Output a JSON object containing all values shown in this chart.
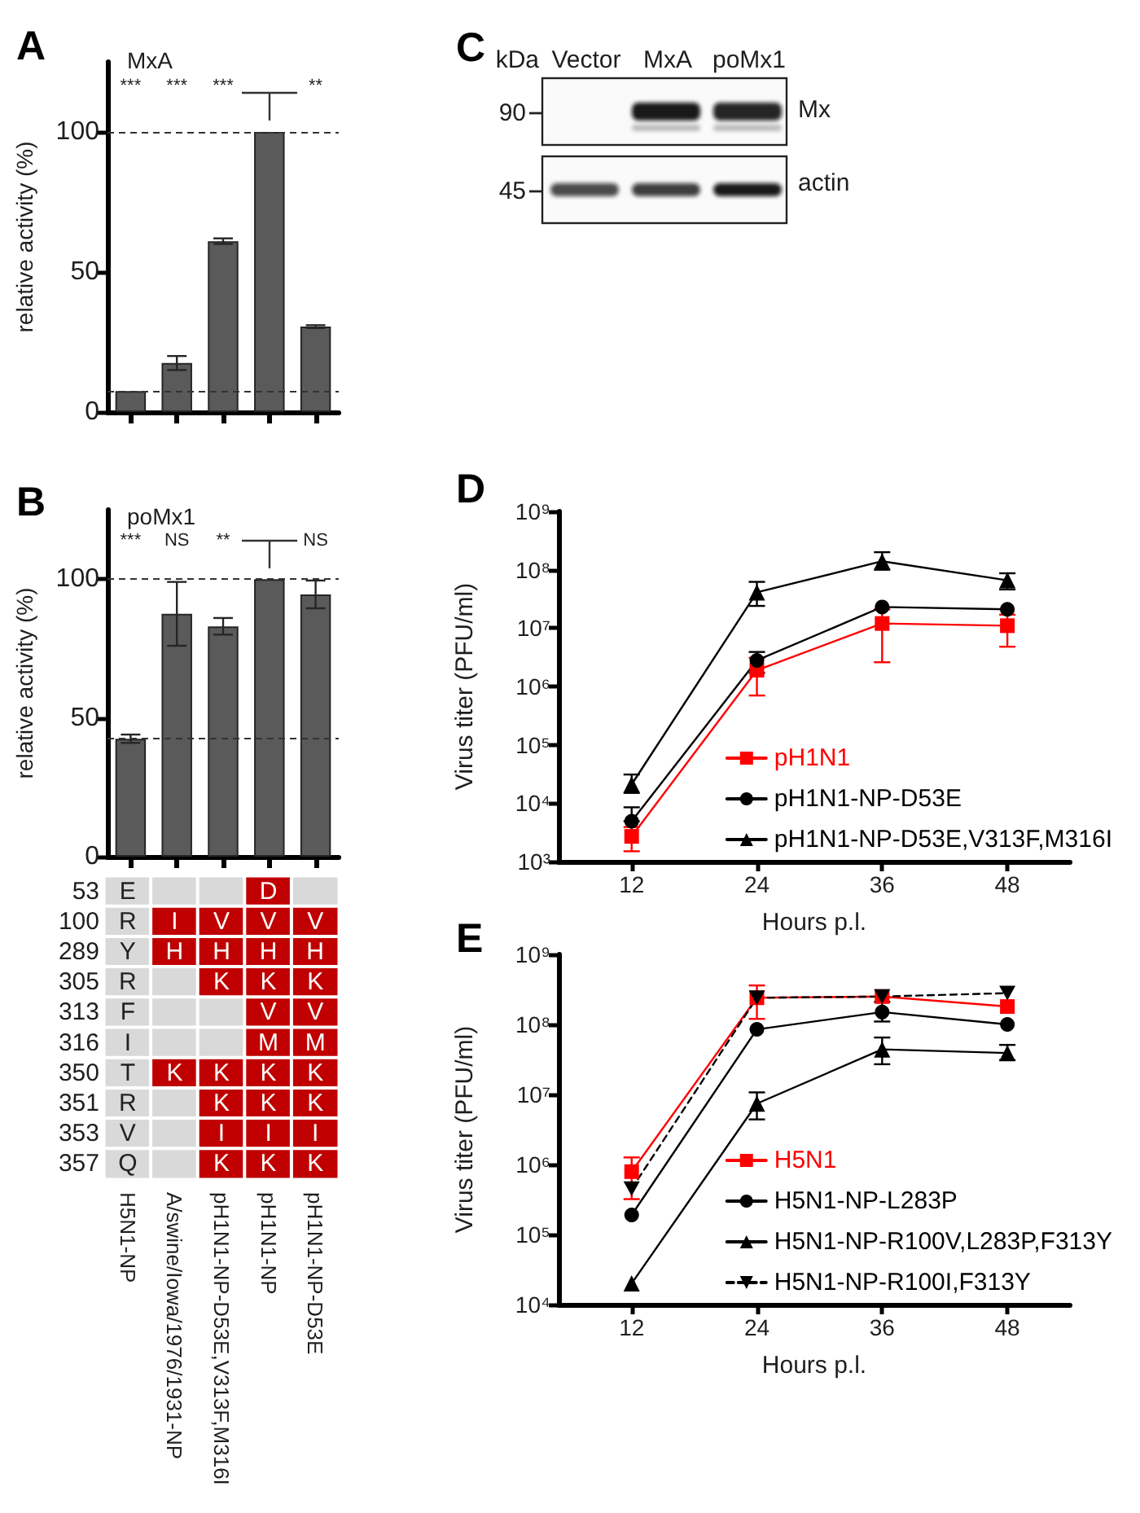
{
  "chart_data": [
    {
      "type": "bar",
      "title": "A",
      "subtitle": "MxA",
      "ylabel": "relative activity (%)",
      "categories": [
        null,
        null,
        null,
        null,
        null
      ],
      "values": [
        7.5,
        17.5,
        61,
        100,
        30.5
      ],
      "errors": [
        null,
        2.5,
        1,
        null,
        0.5
      ],
      "color": "#5a5a5a",
      "ylim": [
        0,
        125
      ],
      "yticks": [
        0,
        50,
        100
      ],
      "tick_labels": "y",
      "ref_lines": [
        {
          "axis": "y",
          "value": 100,
          "line_style": "dashed",
          "color": "#333333"
        },
        {
          "axis": "y",
          "value": 7.5,
          "line_style": "dashed",
          "color": "#333333"
        }
      ],
      "annotations": [
        "***",
        "***",
        "***",
        "**"
      ]
    },
    {
      "type": "bar",
      "title": "B",
      "subtitle": "poMx1",
      "ylabel": "relative activity (%)",
      "categories": [
        null,
        null,
        null,
        null,
        null
      ],
      "values": [
        42.5,
        87.5,
        83,
        100,
        94.5
      ],
      "errors": [
        1.5,
        11.5,
        3,
        null,
        5
      ],
      "color": "#5a5a5a",
      "ylim": [
        0,
        125
      ],
      "yticks": [
        0,
        50,
        100
      ],
      "tick_labels": "y",
      "ref_lines": [
        {
          "axis": "y",
          "value": 100,
          "line_style": "dashed",
          "color": "#333333"
        },
        {
          "axis": "y",
          "value": 42.5,
          "line_style": "dashed",
          "color": "#333333"
        }
      ],
      "annotations": [
        "***",
        "NS",
        "**",
        "NS"
      ]
    },
    {
      "type": "heatmap",
      "categories": [
        "H5N1-NP",
        "A/swine/Iowa/1976/1931-NP",
        "pH1N1-NP-D53E,V313F,M316I",
        "pH1N1-NP",
        "pH1N1-NP-D53E"
      ],
      "y_categories": [
        "53",
        "100",
        "289",
        "305",
        "313",
        "316",
        "350",
        "351",
        "353",
        "357"
      ],
      "cells": [
        [
          "E",
          null,
          null,
          "D",
          null
        ],
        [
          "R",
          "I",
          "V",
          "V",
          "V"
        ],
        [
          "Y",
          "H",
          "H",
          "H",
          "H"
        ],
        [
          "R",
          null,
          "K",
          "K",
          "K"
        ],
        [
          "F",
          null,
          null,
          "V",
          "V"
        ],
        [
          "I",
          null,
          null,
          "M",
          "M"
        ],
        [
          "T",
          "K",
          "K",
          "K",
          "K"
        ],
        [
          "R",
          null,
          "K",
          "K",
          "K"
        ],
        [
          "V",
          null,
          "I",
          "I",
          "I"
        ],
        [
          "Q",
          null,
          "K",
          "K",
          "K"
        ]
      ],
      "colors": [
        [
          "#d9d9d9",
          "#d9d9d9",
          "#d9d9d9",
          "#c00000",
          "#d9d9d9"
        ],
        [
          "#d9d9d9",
          "#c00000",
          "#c00000",
          "#c00000",
          "#c00000"
        ],
        [
          "#d9d9d9",
          "#c00000",
          "#c00000",
          "#c00000",
          "#c00000"
        ],
        [
          "#d9d9d9",
          "#d9d9d9",
          "#c00000",
          "#c00000",
          "#c00000"
        ],
        [
          "#d9d9d9",
          "#d9d9d9",
          "#d9d9d9",
          "#c00000",
          "#c00000"
        ],
        [
          "#d9d9d9",
          "#d9d9d9",
          "#d9d9d9",
          "#c00000",
          "#c00000"
        ],
        [
          "#d9d9d9",
          "#c00000",
          "#c00000",
          "#c00000",
          "#c00000"
        ],
        [
          "#d9d9d9",
          "#d9d9d9",
          "#c00000",
          "#c00000",
          "#c00000"
        ],
        [
          "#d9d9d9",
          "#d9d9d9",
          "#c00000",
          "#c00000",
          "#c00000"
        ],
        [
          "#d9d9d9",
          "#d9d9d9",
          "#c00000",
          "#c00000",
          "#c00000"
        ]
      ]
    },
    {
      "type": "other",
      "title": "C",
      "ylabel": "kDa",
      "categories": [
        "Vector",
        "MxA",
        "poMx1"
      ],
      "y_categories": [
        "90",
        "45"
      ],
      "y2_categories": [
        "Mx",
        "actin"
      ]
    },
    {
      "type": "line",
      "title": "D",
      "xlabel": "Hours p.l.",
      "ylabel": "Virus titer (PFU/ml)",
      "x": [
        12,
        24,
        36,
        48
      ],
      "xlim": [
        5,
        54
      ],
      "xticks": [
        12,
        24,
        36,
        48
      ],
      "ylim": [
        1000,
        1000000000
      ],
      "yticks": [
        {
          "value": 1000,
          "label": "10³"
        },
        {
          "value": 10000,
          "label": "10⁴"
        },
        {
          "value": 100000,
          "label": "10⁵"
        },
        {
          "value": 1000000,
          "label": "10⁶"
        },
        {
          "value": 10000000,
          "label": "10⁷"
        },
        {
          "value": 100000000,
          "label": "10⁸"
        },
        {
          "value": 1000000000,
          "label": "10⁹"
        }
      ],
      "log": true,
      "legend": "bottom right",
      "series": [
        {
          "name": "pH1N1",
          "color": "#ff0000",
          "marker": "square",
          "values": [
            2700,
            1900000,
            12000000,
            11000000
          ],
          "errors": [
            [
              1500,
              3900
            ],
            [
              700000,
              3100000
            ],
            [
              2600000,
              21000000
            ],
            [
              4800000,
              17000000
            ]
          ]
        },
        {
          "name": "pH1N1-NP-D53E",
          "color": "#000000",
          "marker": "circle",
          "values": [
            4900,
            2800000,
            23000000,
            21000000
          ],
          "errors": [
            [
              4900,
              8500
            ],
            [
              1700000,
              3900000
            ],
            null,
            null
          ]
        },
        {
          "name": "pH1N1-NP-D53E,V313F,M316I",
          "color": "#000000",
          "marker": "triangle",
          "values": [
            21000,
            41000000,
            140000000,
            66000000
          ],
          "errors": [
            [
              15000,
              31000
            ],
            [
              24000000,
              62000000
            ],
            [
              100000000,
              200000000
            ],
            [
              46000000,
              87000000
            ]
          ]
        }
      ]
    },
    {
      "type": "line",
      "title": "E",
      "xlabel": "Hours p.l.",
      "ylabel": "Virus titer (PFU/ml)",
      "x": [
        12,
        24,
        36,
        48
      ],
      "xlim": [
        5,
        54
      ],
      "xticks": [
        12,
        24,
        36,
        48
      ],
      "ylim": [
        10000,
        1000000000
      ],
      "yticks": [
        {
          "value": 10000,
          "label": "10⁴"
        },
        {
          "value": 100000,
          "label": "10⁵"
        },
        {
          "value": 1000000,
          "label": "10⁶"
        },
        {
          "value": 10000000,
          "label": "10⁷"
        },
        {
          "value": 100000000,
          "label": "10⁸"
        },
        {
          "value": 1000000000,
          "label": "10⁹"
        }
      ],
      "log": true,
      "legend": "bottom right",
      "series": [
        {
          "name": "H5N1",
          "color": "#ff0000",
          "marker": "square",
          "values": [
            790000,
            240000000,
            250000000,
            180000000
          ],
          "errors": [
            [
              320000,
              1260000
            ],
            [
              120000000,
              360000000
            ],
            null,
            null
          ]
        },
        {
          "name": "H5N1-NP-L283P",
          "color": "#000000",
          "marker": "circle",
          "values": [
            190000,
            85000000,
            150000000,
            100000000
          ],
          "errors": [
            null,
            null,
            [
              110000000,
              210000000
            ],
            null
          ]
        },
        {
          "name": "H5N1-NP-R100V,L283P,F313Y",
          "color": "#000000",
          "marker": "triangle",
          "values": [
            20000,
            7400000,
            44000000,
            39000000
          ],
          "errors": [
            null,
            [
              4400000,
              10700000
            ],
            [
              27000000,
              65000000
            ],
            [
              31000000,
              51000000
            ]
          ]
        },
        {
          "name": "H5N1-NP-R100I,F313Y",
          "color": "#000000",
          "marker": "triangle-down",
          "line_style": "dashed",
          "values": [
            450000,
            240000000,
            250000000,
            280000000
          ]
        }
      ]
    }
  ]
}
